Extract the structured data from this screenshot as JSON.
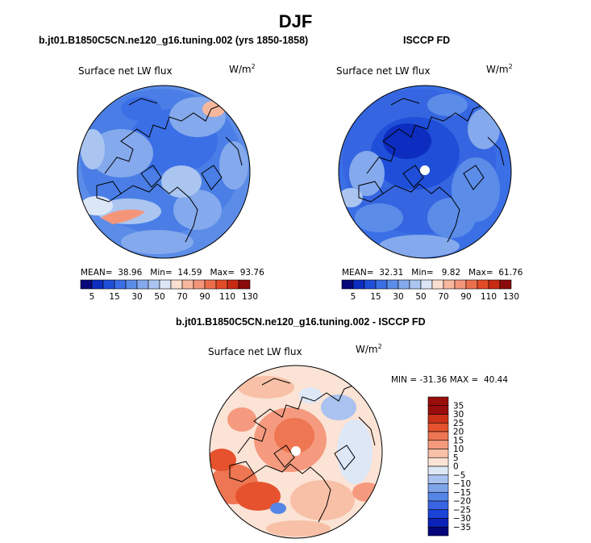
{
  "figure": {
    "title": "DJF",
    "bottom_title": "b.jt01.B1850C5CN.ne120_g16.tuning.002 - ISCCP FD"
  },
  "panels": [
    {
      "subtitle": "b.jt01.B1850C5CN.ne120_g16.tuning.002 (yrs 1850-1858)",
      "label": "Surface net LW flux",
      "units": "W/m",
      "units_sup": "2",
      "mean_label": "MEAN=",
      "mean": "38.96",
      "min_label": "Min=",
      "min": "14.59",
      "max_label": "Max=",
      "max": "93.76",
      "color_ticks": [
        "5",
        "15",
        "30",
        "50",
        "70",
        "90",
        "110",
        "130"
      ]
    },
    {
      "subtitle": "ISCCP FD",
      "label": "Surface net LW flux",
      "units": "W/m",
      "units_sup": "2",
      "mean_label": "MEAN=",
      "mean": "32.31",
      "min_label": "Min=",
      "min": "9.82",
      "max_label": "Max=",
      "max": "61.76",
      "color_ticks": [
        "5",
        "15",
        "30",
        "50",
        "70",
        "90",
        "110",
        "130"
      ]
    },
    {
      "label": "Surface net LW flux",
      "units": "W/m",
      "units_sup": "2",
      "min_label": "MIN =",
      "min": "-31.36",
      "max_label": "MAX =",
      "max": "40.44",
      "color_ticks": [
        "35",
        "30",
        "25",
        "20",
        "15",
        "10",
        "5",
        "0",
        "−5",
        "−10",
        "−15",
        "−20",
        "−25",
        "−30",
        "−35"
      ]
    }
  ],
  "colors": {
    "abs_scale": [
      "#08087a",
      "#0c2dbf",
      "#1f4fd9",
      "#3b6fe6",
      "#5b8ce8",
      "#84a9ec",
      "#aac5f0",
      "#dbe6f7",
      "#fbe0d2",
      "#f7b79d",
      "#f4957a",
      "#ec6f4c",
      "#e34b27",
      "#c72a14",
      "#8b0a0a"
    ],
    "diff_scale": [
      "#06067c",
      "#0b22b8",
      "#1a44d8",
      "#3865e2",
      "#5585e6",
      "#7ea4ea",
      "#a9c2ef",
      "#dde7f6",
      "#fbe3d5",
      "#f8c0a6",
      "#f59a7e",
      "#ee7653",
      "#e5522d",
      "#cc3018",
      "#9a0d0d"
    ]
  }
}
